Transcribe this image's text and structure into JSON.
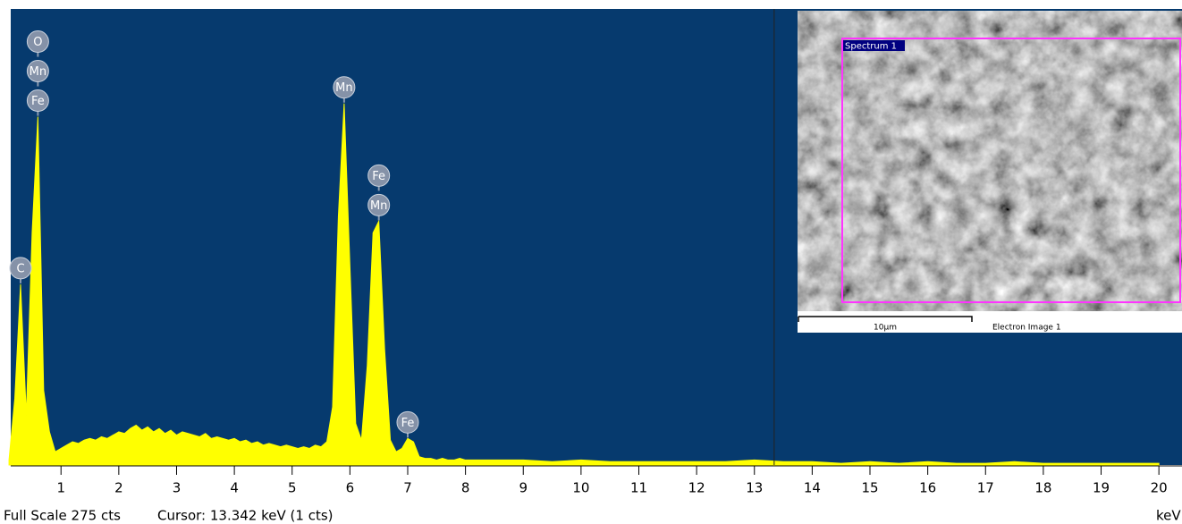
{
  "chart_data": {
    "type": "area",
    "color": "#ffff00",
    "background": "#063a6e",
    "x": [
      0.1,
      0.2,
      0.3,
      0.4,
      0.5,
      0.6,
      0.7,
      0.8,
      0.9,
      1.0,
      1.1,
      1.2,
      1.3,
      1.4,
      1.5,
      1.6,
      1.7,
      1.8,
      1.9,
      2.0,
      2.1,
      2.2,
      2.3,
      2.4,
      2.5,
      2.6,
      2.7,
      2.8,
      2.9,
      3.0,
      3.1,
      3.2,
      3.3,
      3.4,
      3.5,
      3.6,
      3.7,
      3.8,
      3.9,
      4.0,
      4.1,
      4.2,
      4.3,
      4.4,
      4.5,
      4.6,
      4.7,
      4.8,
      4.9,
      5.0,
      5.1,
      5.2,
      5.3,
      5.4,
      5.5,
      5.6,
      5.7,
      5.8,
      5.9,
      6.0,
      6.1,
      6.2,
      6.3,
      6.4,
      6.5,
      6.6,
      6.7,
      6.8,
      6.9,
      7.0,
      7.1,
      7.2,
      7.3,
      7.4,
      7.5,
      7.6,
      7.7,
      7.8,
      7.9,
      8.0,
      8.5,
      9.0,
      9.5,
      10.0,
      10.5,
      11.0,
      11.5,
      12.0,
      12.5,
      13.0,
      13.5,
      14.0,
      14.5,
      15.0,
      15.5,
      16.0,
      16.5,
      17.0,
      17.5,
      18.0,
      18.5,
      19.0,
      19.5,
      20.0
    ],
    "values": [
      3,
      40,
      109,
      30,
      140,
      210,
      45,
      20,
      8,
      10,
      12,
      14,
      13,
      15,
      16,
      15,
      17,
      16,
      18,
      20,
      19,
      22,
      24,
      21,
      23,
      20,
      22,
      19,
      21,
      18,
      20,
      19,
      18,
      17,
      19,
      16,
      17,
      16,
      15,
      16,
      14,
      15,
      13,
      14,
      12,
      13,
      12,
      11,
      12,
      11,
      10,
      11,
      10,
      12,
      11,
      14,
      35,
      150,
      218,
      120,
      25,
      15,
      60,
      140,
      147,
      70,
      15,
      8,
      10,
      16,
      14,
      5,
      4,
      4,
      3,
      4,
      3,
      3,
      4,
      3,
      3,
      3,
      2,
      3,
      2,
      2,
      2,
      2,
      2,
      3,
      2,
      2,
      1,
      2,
      1,
      2,
      1,
      1,
      2,
      1,
      1,
      1,
      1,
      1
    ],
    "xlim": [
      0.13,
      20.4
    ],
    "ylim": [
      0,
      275
    ],
    "xticks": [
      1,
      2,
      3,
      4,
      5,
      6,
      7,
      8,
      9,
      10,
      11,
      12,
      13,
      14,
      15,
      16,
      17,
      18,
      19,
      20
    ],
    "x_unit": "keV",
    "annotations": [
      {
        "x": 0.3,
        "labels": [
          "C"
        ]
      },
      {
        "x": 0.6,
        "labels": [
          "Fe",
          "Mn",
          "O"
        ]
      },
      {
        "x": 5.9,
        "labels": [
          "Mn"
        ]
      },
      {
        "x": 6.5,
        "labels": [
          "Mn",
          "Fe"
        ]
      },
      {
        "x": 7.0,
        "labels": [
          "Fe"
        ]
      }
    ],
    "status": "Full Scale 275 cts",
    "cursor": {
      "value": 13.342,
      "label": "Cursor: 13.342 keV (1 cts)"
    },
    "inset": {
      "spectrum_label": "Spectrum 1",
      "scale_label": "10µm",
      "image_label": "Electron Image 1"
    }
  }
}
